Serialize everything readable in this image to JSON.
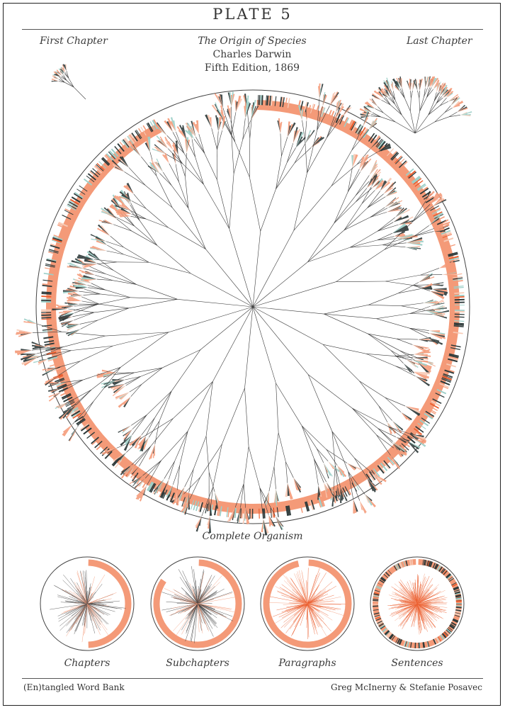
{
  "plate": {
    "title": "PLATE 5"
  },
  "work": {
    "title": "The Origin of Species",
    "author": "Charles Darwin",
    "edition": "Fifth Edition, 1869"
  },
  "corners": {
    "first": "First Chapter",
    "last": "Last Chapter"
  },
  "main": {
    "caption": "Complete Organism"
  },
  "small_multiples": [
    {
      "label": "Chapters"
    },
    {
      "label": "Subchapters"
    },
    {
      "label": "Paragraphs"
    },
    {
      "label": "Sentences"
    }
  ],
  "footer": {
    "left": "(En)tangled Word Bank",
    "right": "Greg McInerny & Stefanie Posavec"
  },
  "colors": {
    "salmon": "#f49a78",
    "dark": "#2e3a3a",
    "teal": "#9ccfc8",
    "orange": "#ea5a2a",
    "light": "#f7c9b4"
  }
}
